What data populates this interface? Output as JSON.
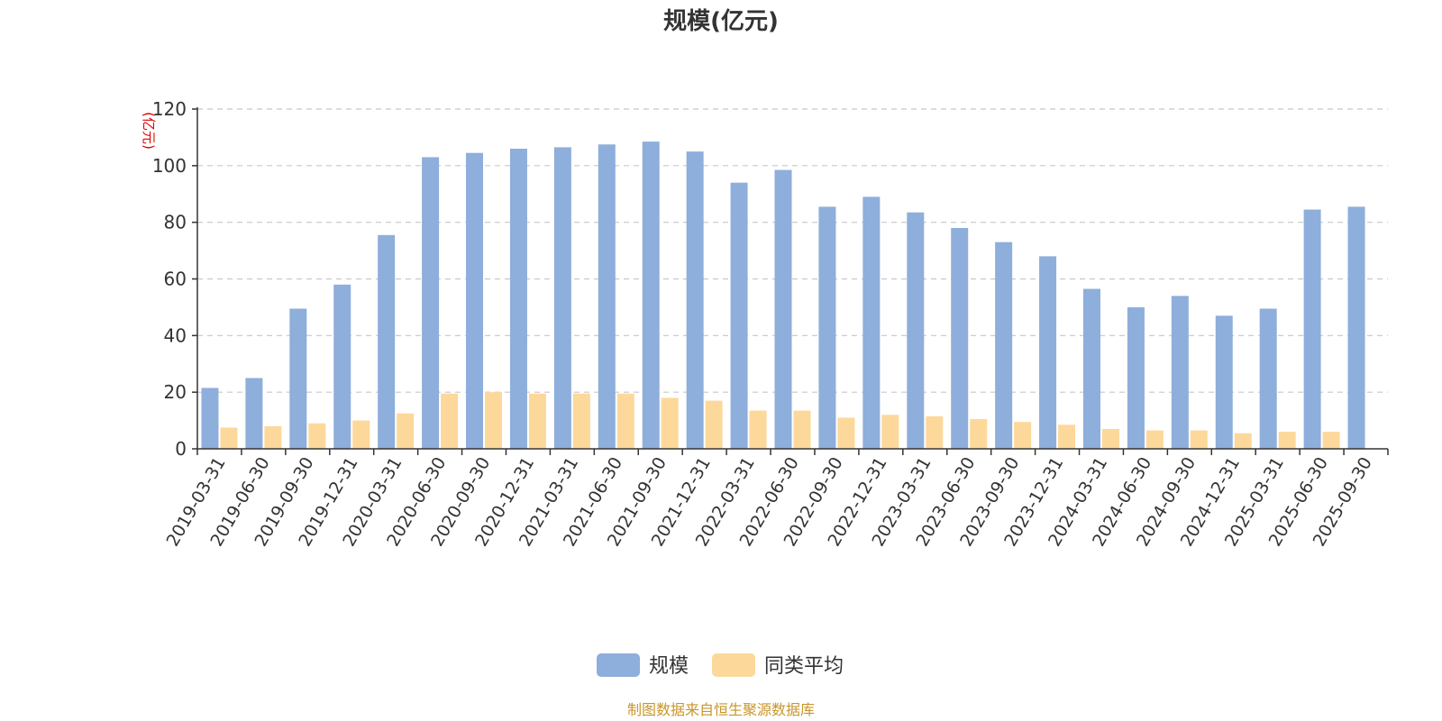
{
  "chart_data": {
    "type": "bar",
    "title": "规模(亿元)",
    "ylabel": "(亿元)",
    "ylim": [
      0,
      120
    ],
    "yticks": [
      0,
      20,
      40,
      60,
      80,
      100,
      120
    ],
    "grid": true,
    "legend_position": "bottom",
    "categories": [
      "2019-03-31",
      "2019-06-30",
      "2019-09-30",
      "2019-12-31",
      "2020-03-31",
      "2020-06-30",
      "2020-09-30",
      "2020-12-31",
      "2021-03-31",
      "2021-06-30",
      "2021-09-30",
      "2021-12-31",
      "2022-03-31",
      "2022-06-30",
      "2022-09-30",
      "2022-12-31",
      "2023-03-31",
      "2023-06-30",
      "2023-09-30",
      "2023-12-31",
      "2024-03-31",
      "2024-06-30",
      "2024-09-30",
      "2024-12-31",
      "2025-03-31",
      "2025-06-30",
      "2025-09-30"
    ],
    "series": [
      {
        "name": "规模",
        "color": "#8eaedb",
        "values": [
          21.5,
          25,
          49.5,
          58,
          75.5,
          103,
          104.5,
          106,
          106.5,
          107.5,
          108.5,
          105,
          94,
          98.5,
          85.5,
          89,
          83.5,
          78,
          73,
          68,
          56.5,
          50,
          54,
          47,
          49.5,
          84.5,
          85.5
        ]
      },
      {
        "name": "同类平均",
        "color": "#fdd89b",
        "values": [
          7.5,
          8,
          9,
          10,
          12.5,
          19.5,
          20,
          19.5,
          19.5,
          19.5,
          18,
          17,
          13.5,
          13.5,
          11,
          12,
          11.5,
          10.5,
          9.5,
          8.5,
          7,
          6.5,
          6.5,
          5.5,
          6,
          6,
          null
        ]
      }
    ]
  },
  "footer": {
    "source": "制图数据来自恒生聚源数据库"
  }
}
